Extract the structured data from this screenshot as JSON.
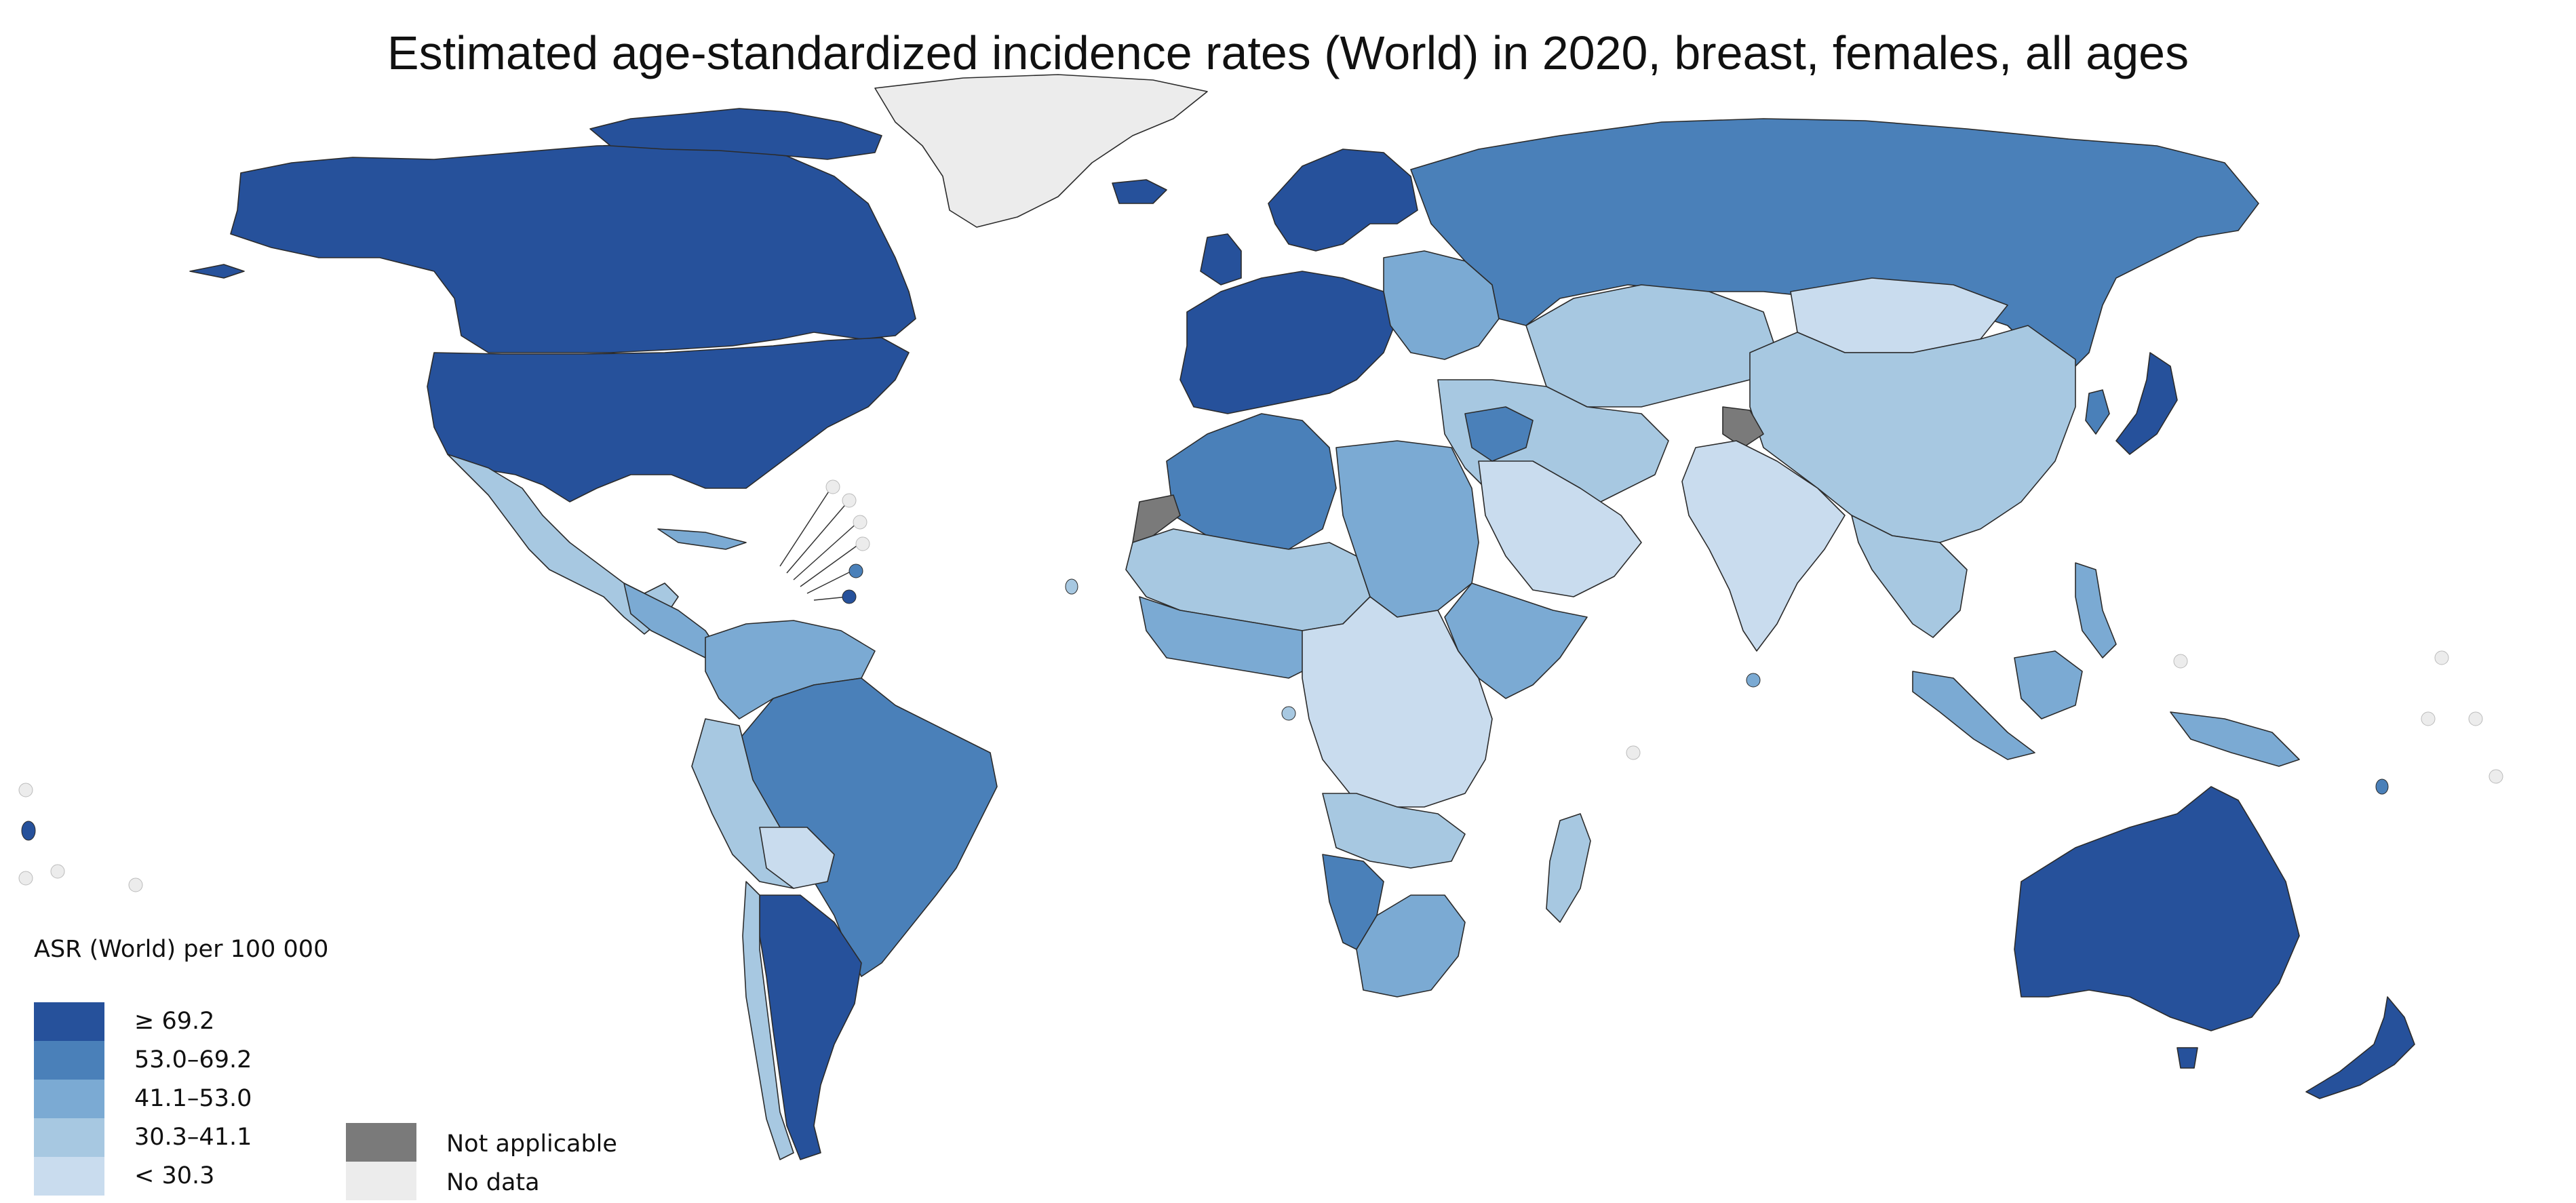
{
  "title": "Estimated age-standardized incidence rates (World) in 2020, breast, females, all ages",
  "legend": {
    "title": "ASR (World) per 100 000",
    "classes": [
      {
        "label": "≥ 69.2",
        "color": "#26519b"
      },
      {
        "label": "53.0–69.2",
        "color": "#4a80b9"
      },
      {
        "label": "41.1–53.0",
        "color": "#7baad3"
      },
      {
        "label": "30.3–41.1",
        "color": "#a7c8e1"
      },
      {
        "label": "< 30.3",
        "color": "#c9dcee"
      }
    ],
    "extra": [
      {
        "label": "Not applicable",
        "color": "#7a7a7a"
      },
      {
        "label": "No data",
        "color": "#ececec"
      }
    ]
  },
  "colors": {
    "very_high": "#26519b",
    "high": "#4a80b9",
    "mid": "#7baad3",
    "low": "#a7c8e1",
    "very_low": "#c9dcee",
    "not_applicable": "#7a7a7a",
    "no_data": "#ececec"
  }
}
